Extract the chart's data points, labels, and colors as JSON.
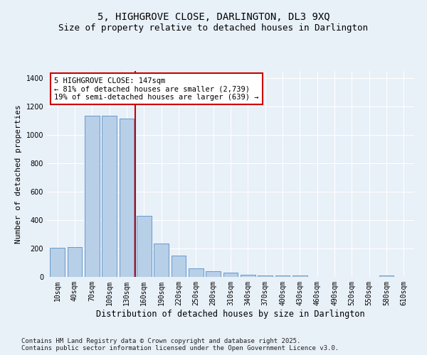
{
  "title": "5, HIGHGROVE CLOSE, DARLINGTON, DL3 9XQ",
  "subtitle": "Size of property relative to detached houses in Darlington",
  "xlabel": "Distribution of detached houses by size in Darlington",
  "ylabel": "Number of detached properties",
  "categories": [
    "10sqm",
    "40sqm",
    "70sqm",
    "100sqm",
    "130sqm",
    "160sqm",
    "190sqm",
    "220sqm",
    "250sqm",
    "280sqm",
    "310sqm",
    "340sqm",
    "370sqm",
    "400sqm",
    "430sqm",
    "460sqm",
    "490sqm",
    "520sqm",
    "550sqm",
    "580sqm",
    "610sqm"
  ],
  "values": [
    205,
    210,
    1135,
    1135,
    1115,
    430,
    235,
    148,
    60,
    38,
    28,
    15,
    12,
    10,
    8,
    0,
    0,
    0,
    0,
    10,
    0
  ],
  "bar_color": "#b8cfe8",
  "bar_edge_color": "#6699cc",
  "vline_color": "#cc0000",
  "vline_pos": 4.5,
  "annotation_text": "5 HIGHGROVE CLOSE: 147sqm\n← 81% of detached houses are smaller (2,739)\n19% of semi-detached houses are larger (639) →",
  "annotation_box_color": "#ffffff",
  "annotation_box_edge_color": "#cc0000",
  "bg_color": "#e8f0f8",
  "grid_color": "#ffffff",
  "footnote": "Contains HM Land Registry data © Crown copyright and database right 2025.\nContains public sector information licensed under the Open Government Licence v3.0.",
  "ylim": [
    0,
    1450
  ],
  "title_fontsize": 10,
  "subtitle_fontsize": 9,
  "xlabel_fontsize": 8.5,
  "ylabel_fontsize": 8,
  "tick_fontsize": 7,
  "annotation_fontsize": 7.5,
  "footnote_fontsize": 6.5
}
